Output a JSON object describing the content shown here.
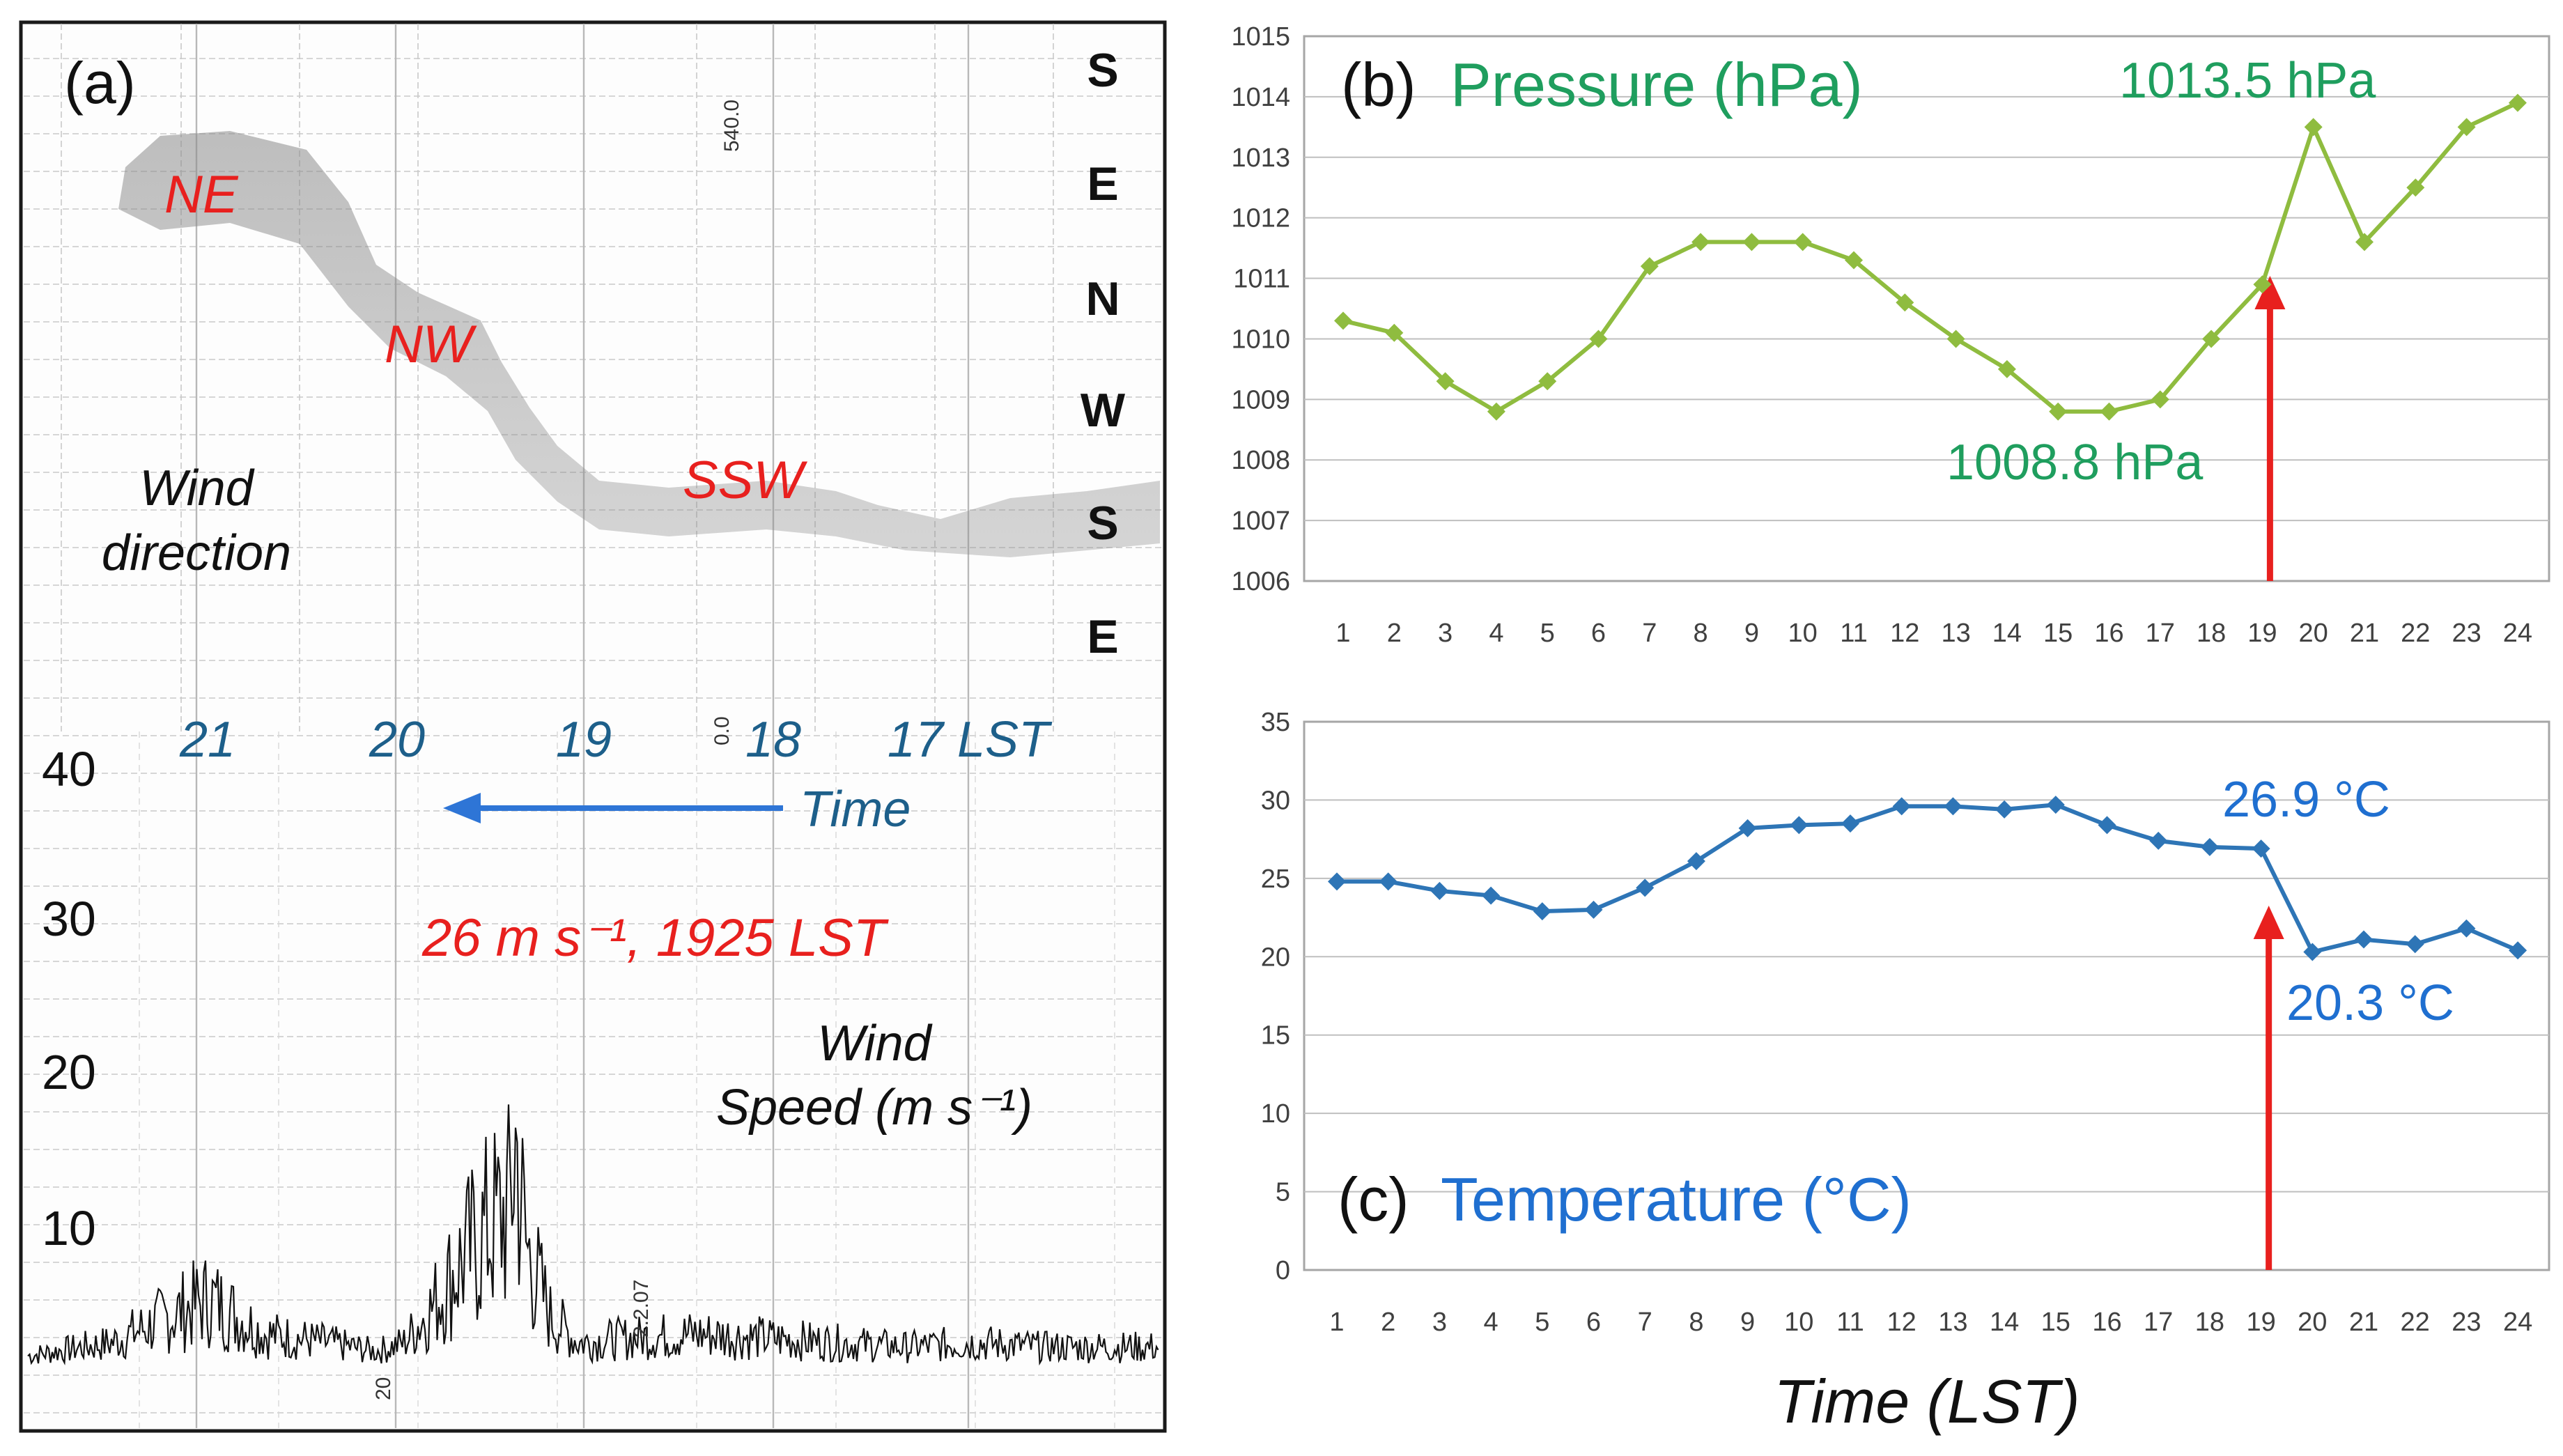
{
  "figure": {
    "x_axis_title": "Time (LST)"
  },
  "panel_a": {
    "label": "(a)",
    "compass_labels": [
      "S",
      "E",
      "N",
      "W",
      "S",
      "E"
    ],
    "direction_labels": [
      "NE",
      "NW",
      "SSW"
    ],
    "wind_direction_label_lines": [
      "Wind",
      "direction"
    ],
    "hour_labels": [
      "21",
      "20",
      "19",
      "18",
      "17 LST"
    ],
    "time_label": "Time",
    "speed_ticks": [
      "40",
      "30",
      "20",
      "10"
    ],
    "peak_annotation": "26 m s⁻¹, 1925 LST",
    "wind_speed_label_lines": [
      "Wind",
      "Speed (m s⁻¹)"
    ],
    "trace_marks": [
      "540.0",
      "0.0",
      "20",
      "2.2.07"
    ],
    "colors": {
      "red": "#e8201e",
      "blue": "#1d6aa5",
      "trace": "#111111"
    }
  },
  "chart_data": [
    {
      "type": "line",
      "panel": "(b)",
      "title": "Pressure (hPa)",
      "x": [
        1,
        2,
        3,
        4,
        5,
        6,
        7,
        8,
        9,
        10,
        11,
        12,
        13,
        14,
        15,
        16,
        17,
        18,
        19,
        20,
        21,
        22,
        23,
        24
      ],
      "y": [
        1010.3,
        1010.1,
        1009.3,
        1008.8,
        1009.3,
        1010.0,
        1011.2,
        1011.6,
        1011.6,
        1011.6,
        1011.3,
        1010.6,
        1010.0,
        1009.5,
        1008.8,
        1008.8,
        1009.0,
        1010.0,
        1010.9,
        1013.5,
        1011.6,
        1012.5,
        1013.5,
        1013.9
      ],
      "ylim": [
        1006,
        1015
      ],
      "yticks": [
        1006,
        1007,
        1008,
        1009,
        1010,
        1011,
        1012,
        1013,
        1014,
        1015
      ],
      "xlabel": "",
      "ylabel": "",
      "grid": true,
      "line_color": "#8fbc3f",
      "title_color": "#1f9e5e",
      "annotations": [
        {
          "text": "1013.5 hPa",
          "x": 20,
          "y": 1013.5
        },
        {
          "text": "1008.8 hPa",
          "x": 15,
          "y": 1008.8
        }
      ],
      "arrow": {
        "x": 19.15,
        "color": "#e8201e"
      }
    },
    {
      "type": "line",
      "panel": "(c)",
      "title": "Temperature (°C)",
      "x": [
        1,
        2,
        3,
        4,
        5,
        6,
        7,
        8,
        9,
        10,
        11,
        12,
        13,
        14,
        15,
        16,
        17,
        18,
        19,
        20,
        21,
        22,
        23,
        24
      ],
      "y": [
        24.8,
        24.8,
        24.2,
        23.9,
        22.9,
        23.0,
        24.4,
        26.1,
        28.2,
        28.4,
        28.5,
        29.6,
        29.6,
        29.4,
        29.7,
        28.4,
        27.4,
        27.0,
        26.9,
        20.3,
        21.1,
        20.8,
        21.8,
        20.4
      ],
      "ylim": [
        0,
        35
      ],
      "yticks": [
        0,
        5,
        10,
        15,
        20,
        25,
        30,
        35
      ],
      "xlabel": "Time (LST)",
      "ylabel": "",
      "grid": true,
      "line_color": "#2e75b6",
      "title_color": "#1f6fd0",
      "annotations": [
        {
          "text": "26.9 °C",
          "x": 19,
          "y": 26.9
        },
        {
          "text": "20.3 °C",
          "x": 20,
          "y": 20.3
        }
      ],
      "arrow": {
        "x": 19.15,
        "color": "#e8201e"
      }
    }
  ]
}
